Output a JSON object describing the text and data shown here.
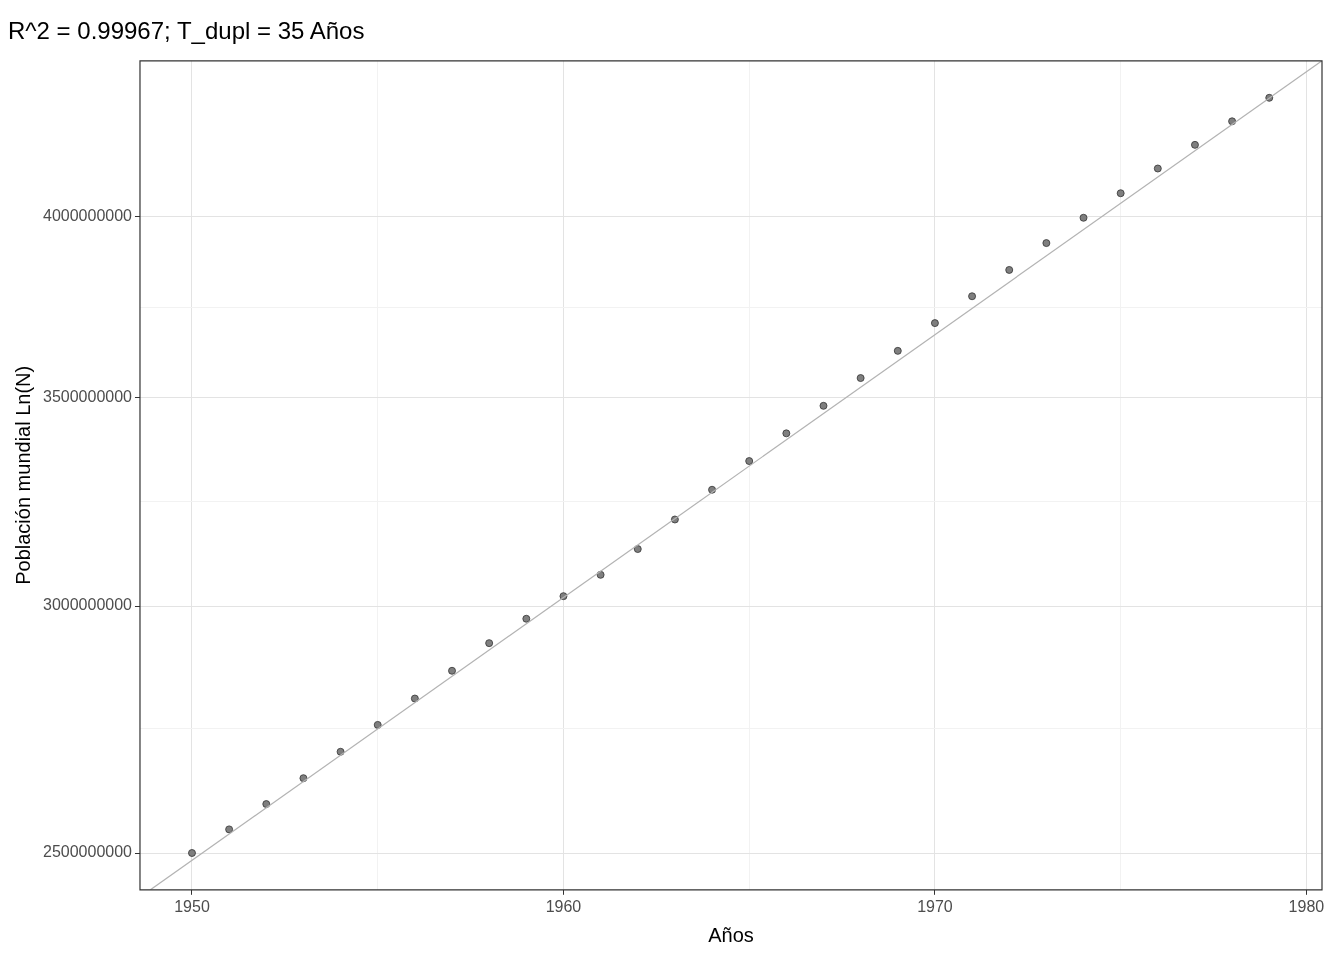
{
  "chart_data": {
    "type": "scatter",
    "title": "R^2 = 0.99967; T_dupl = 35 Años",
    "xlabel": "Años",
    "ylabel": "Población mundial Ln(N)",
    "x": [
      1950,
      1951,
      1952,
      1953,
      1954,
      1955,
      1956,
      1957,
      1958,
      1959,
      1960,
      1961,
      1962,
      1963,
      1964,
      1965,
      1966,
      1967,
      1968,
      1969,
      1970,
      1971,
      1972,
      1973,
      1974,
      1975,
      1976,
      1977,
      1978,
      1979
    ],
    "series": [
      {
        "type": "scatter",
        "color": "#7f7f7f",
        "marker": "circle",
        "values": [
          2500000000,
          2544000000,
          2592000000,
          2642000000,
          2694000000,
          2748000000,
          2802000000,
          2860000000,
          2919000000,
          2972000000,
          3022000000,
          3070000000,
          3129000000,
          3198000000,
          3269000000,
          3339000000,
          3408000000,
          3478000000,
          3550000000,
          3622000000,
          3697000000,
          3771000000,
          3845000000,
          3922000000,
          3996000000,
          4069000000,
          4144000000,
          4217000000,
          4291000000,
          4366000000
        ]
      },
      {
        "type": "line",
        "color": "#b3b3b3",
        "marker": "none",
        "line_style": "solid",
        "x": [
          1948.88,
          1980.42
        ],
        "values": [
          2433000000,
          4487000000
        ]
      }
    ],
    "log": "y",
    "xlim": [
      1948.6,
      1980.42
    ],
    "ylim": [
      2433000000,
      4487000000
    ],
    "xticks": [
      1950,
      {
        "value": 1955,
        "label": null
      },
      1960,
      {
        "value": 1965,
        "label": null
      },
      1970,
      {
        "value": 1975,
        "label": null
      },
      1980
    ],
    "yticks": [
      2500000000,
      {
        "value": 2740000000,
        "label": null
      },
      3000000000,
      {
        "value": 3240000000,
        "label": null
      },
      3500000000,
      {
        "value": 3740000000,
        "label": null
      },
      4000000000
    ],
    "grid": true,
    "legend": false
  }
}
